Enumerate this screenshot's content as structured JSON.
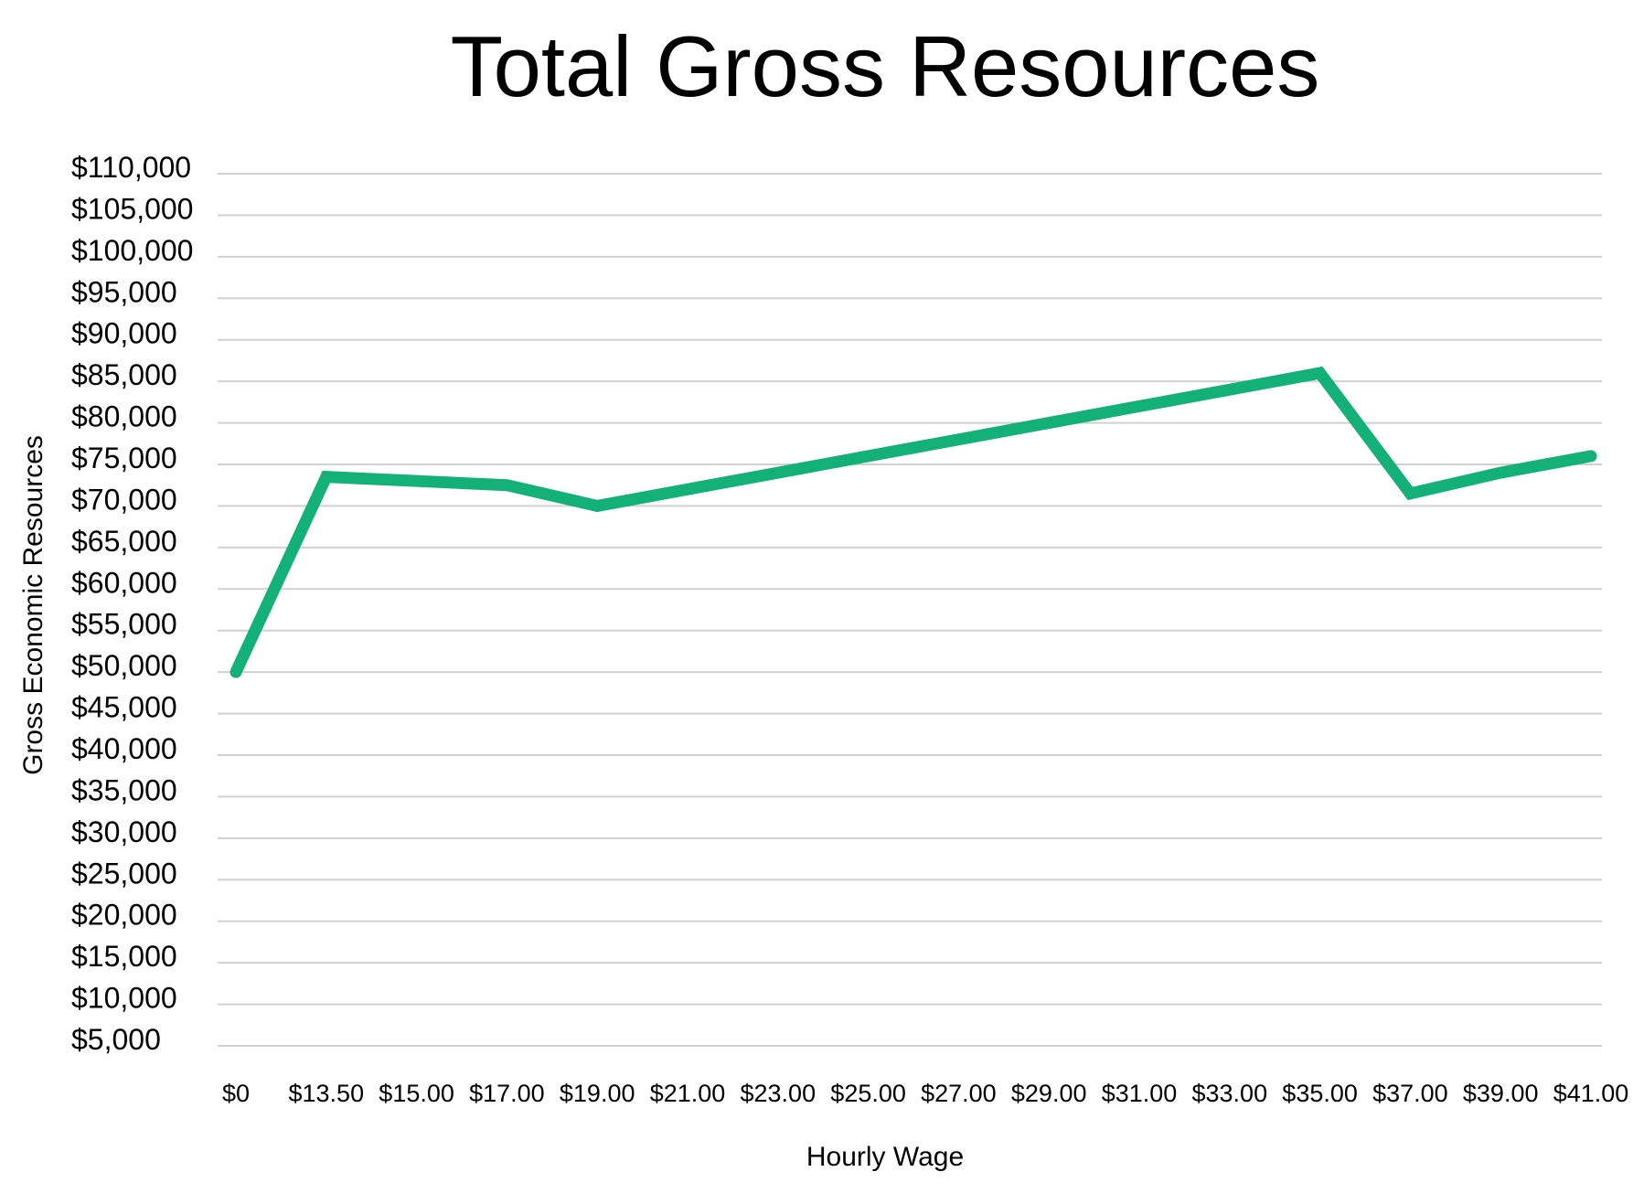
{
  "chart_data": {
    "type": "line",
    "title": "Total Gross Resources",
    "xlabel": "Hourly Wage",
    "ylabel": "Gross Economic Resources",
    "categories": [
      "$0",
      "$13.50",
      "$15.00",
      "$17.00",
      "$19.00",
      "$21.00",
      "$23.00",
      "$25.00",
      "$27.00",
      "$29.00",
      "$31.00",
      "$33.00",
      "$35.00",
      "$37.00",
      "$39.00",
      "$41.00"
    ],
    "series": [
      {
        "values": [
          50000,
          73500,
          73000,
          72500,
          70000,
          72000,
          74000,
          76000,
          78000,
          80000,
          82000,
          84000,
          86000,
          71500,
          74000,
          76000
        ]
      }
    ],
    "yticks": [
      "$110,000",
      "$105,000",
      "$100,000",
      "$95,000",
      "$90,000",
      "$85,000",
      "$80,000",
      "$75,000",
      "$70,000",
      "$65,000",
      "$60,000",
      "$55,000",
      "$50,000",
      "$45,000",
      "$40,000",
      "$35,000",
      "$30,000",
      "$25,000",
      "$20,000",
      "$15,000",
      "$10,000",
      "$5,000"
    ],
    "ylim": [
      5000,
      110000
    ],
    "ystep": 5000,
    "grid": true,
    "legend": "none",
    "line_color": "#13b07a",
    "grid_color": "#d0d0d0"
  }
}
